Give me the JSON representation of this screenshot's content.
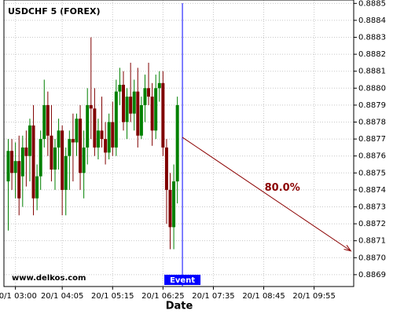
{
  "chart_data": {
    "type": "candlestick",
    "title": "USDCHF 5 (FOREX)",
    "watermark": "www.delkos.com",
    "x_label": "Date",
    "up_color": "#008000",
    "down_color": "#800000",
    "grid": true,
    "xlim": [
      "20/1 02:44",
      "20/1 10:50"
    ],
    "xticks": [
      "20/1 03:00",
      "20/1 04:05",
      "20/1 05:15",
      "20/1 06:25",
      "20/1 07:35",
      "20/1 08:45",
      "20/1 09:55"
    ],
    "ylim": [
      0.88683,
      0.88852
    ],
    "yticks": [
      0.8869,
      {
        "value": 0.887,
        "label": "0.8870"
      },
      0.8871,
      0.8872,
      0.8873,
      0.8874,
      0.8875,
      0.8876,
      0.8877,
      0.8878,
      0.8879,
      {
        "value": 0.888,
        "label": "0.8880"
      },
      0.8881,
      0.8882,
      0.8883,
      0.8884,
      0.8885
    ],
    "x": [
      "20/1 02:50",
      "20/1 02:55",
      "20/1 03:00",
      "20/1 03:05",
      "20/1 03:10",
      "20/1 03:15",
      "20/1 03:20",
      "20/1 03:25",
      "20/1 03:30",
      "20/1 03:35",
      "20/1 03:40",
      "20/1 03:45",
      "20/1 03:50",
      "20/1 03:55",
      "20/1 04:00",
      "20/1 04:05",
      "20/1 04:10",
      "20/1 04:15",
      "20/1 04:20",
      "20/1 04:25",
      "20/1 04:30",
      "20/1 04:35",
      "20/1 04:40",
      "20/1 04:45",
      "20/1 04:50",
      "20/1 04:55",
      "20/1 05:00",
      "20/1 05:05",
      "20/1 05:10",
      "20/1 05:15",
      "20/1 05:20",
      "20/1 05:25",
      "20/1 05:30",
      "20/1 05:35",
      "20/1 05:40",
      "20/1 05:45",
      "20/1 05:50",
      "20/1 05:55",
      "20/1 06:00",
      "20/1 06:05",
      "20/1 06:10",
      "20/1 06:15",
      "20/1 06:20",
      "20/1 06:25",
      "20/1 06:30",
      "20/1 06:35",
      "20/1 06:40",
      "20/1 06:45"
    ],
    "open": [
      0.88745,
      0.88763,
      0.8875,
      0.88757,
      0.88748,
      0.88765,
      0.8876,
      0.88778,
      0.88735,
      0.88748,
      0.8877,
      0.8879,
      0.88772,
      0.88752,
      0.88765,
      0.88775,
      0.8874,
      0.8876,
      0.8877,
      0.88768,
      0.88782,
      0.8875,
      0.88765,
      0.8879,
      0.88788,
      0.88765,
      0.88775,
      0.8877,
      0.88762,
      0.8878,
      0.88765,
      0.88798,
      0.88802,
      0.8878,
      0.88795,
      0.88785,
      0.88798,
      0.88772,
      0.8879,
      0.888,
      0.88795,
      0.88775,
      0.888,
      0.88803,
      0.88765,
      0.8874,
      0.88718,
      0.88745
    ],
    "high": [
      0.8877,
      0.8877,
      0.88768,
      0.88772,
      0.88772,
      0.88775,
      0.88782,
      0.8879,
      0.88755,
      0.88775,
      0.88805,
      0.88798,
      0.8879,
      0.8877,
      0.88782,
      0.88778,
      0.88765,
      0.88775,
      0.88785,
      0.88785,
      0.8879,
      0.88775,
      0.888,
      0.8883,
      0.888,
      0.88782,
      0.88795,
      0.8878,
      0.88785,
      0.88792,
      0.88805,
      0.88812,
      0.8881,
      0.888,
      0.88815,
      0.88805,
      0.88812,
      0.88795,
      0.88808,
      0.88815,
      0.88803,
      0.88808,
      0.8881,
      0.8881,
      0.8877,
      0.8875,
      0.88755,
      0.88795
    ],
    "low": [
      0.88716,
      0.8874,
      0.88735,
      0.88725,
      0.8873,
      0.88742,
      0.88745,
      0.88725,
      0.88728,
      0.8874,
      0.88765,
      0.8876,
      0.88745,
      0.8874,
      0.88752,
      0.88725,
      0.88725,
      0.8874,
      0.88745,
      0.8876,
      0.8874,
      0.88735,
      0.88755,
      0.8877,
      0.8876,
      0.88758,
      0.88765,
      0.88755,
      0.88758,
      0.8876,
      0.8876,
      0.8879,
      0.88775,
      0.8877,
      0.8878,
      0.88775,
      0.88765,
      0.8877,
      0.8878,
      0.8879,
      0.88766,
      0.8877,
      0.88792,
      0.8876,
      0.8872,
      0.88705,
      0.88705,
      0.88732
    ],
    "close": [
      0.88763,
      0.8875,
      0.88757,
      0.88735,
      0.88765,
      0.8876,
      0.88778,
      0.88735,
      0.88748,
      0.8877,
      0.8879,
      0.88772,
      0.88752,
      0.88765,
      0.88775,
      0.8874,
      0.8876,
      0.8877,
      0.88768,
      0.88782,
      0.8875,
      0.88765,
      0.8879,
      0.88788,
      0.88765,
      0.88775,
      0.8877,
      0.88762,
      0.8878,
      0.88765,
      0.88798,
      0.88802,
      0.8878,
      0.88795,
      0.88785,
      0.88798,
      0.88772,
      0.8879,
      0.888,
      0.88795,
      0.88775,
      0.888,
      0.88803,
      0.88765,
      0.8874,
      0.88718,
      0.88745,
      0.8879
    ],
    "event": {
      "x": "20/1 06:52",
      "label": "Event",
      "color": "#0000ff"
    },
    "projection": {
      "x": [
        "20/1 06:52",
        "20/1 10:46"
      ],
      "y": [
        0.88771,
        0.88704
      ],
      "label": "80.0%",
      "color": "#8b0000"
    }
  }
}
